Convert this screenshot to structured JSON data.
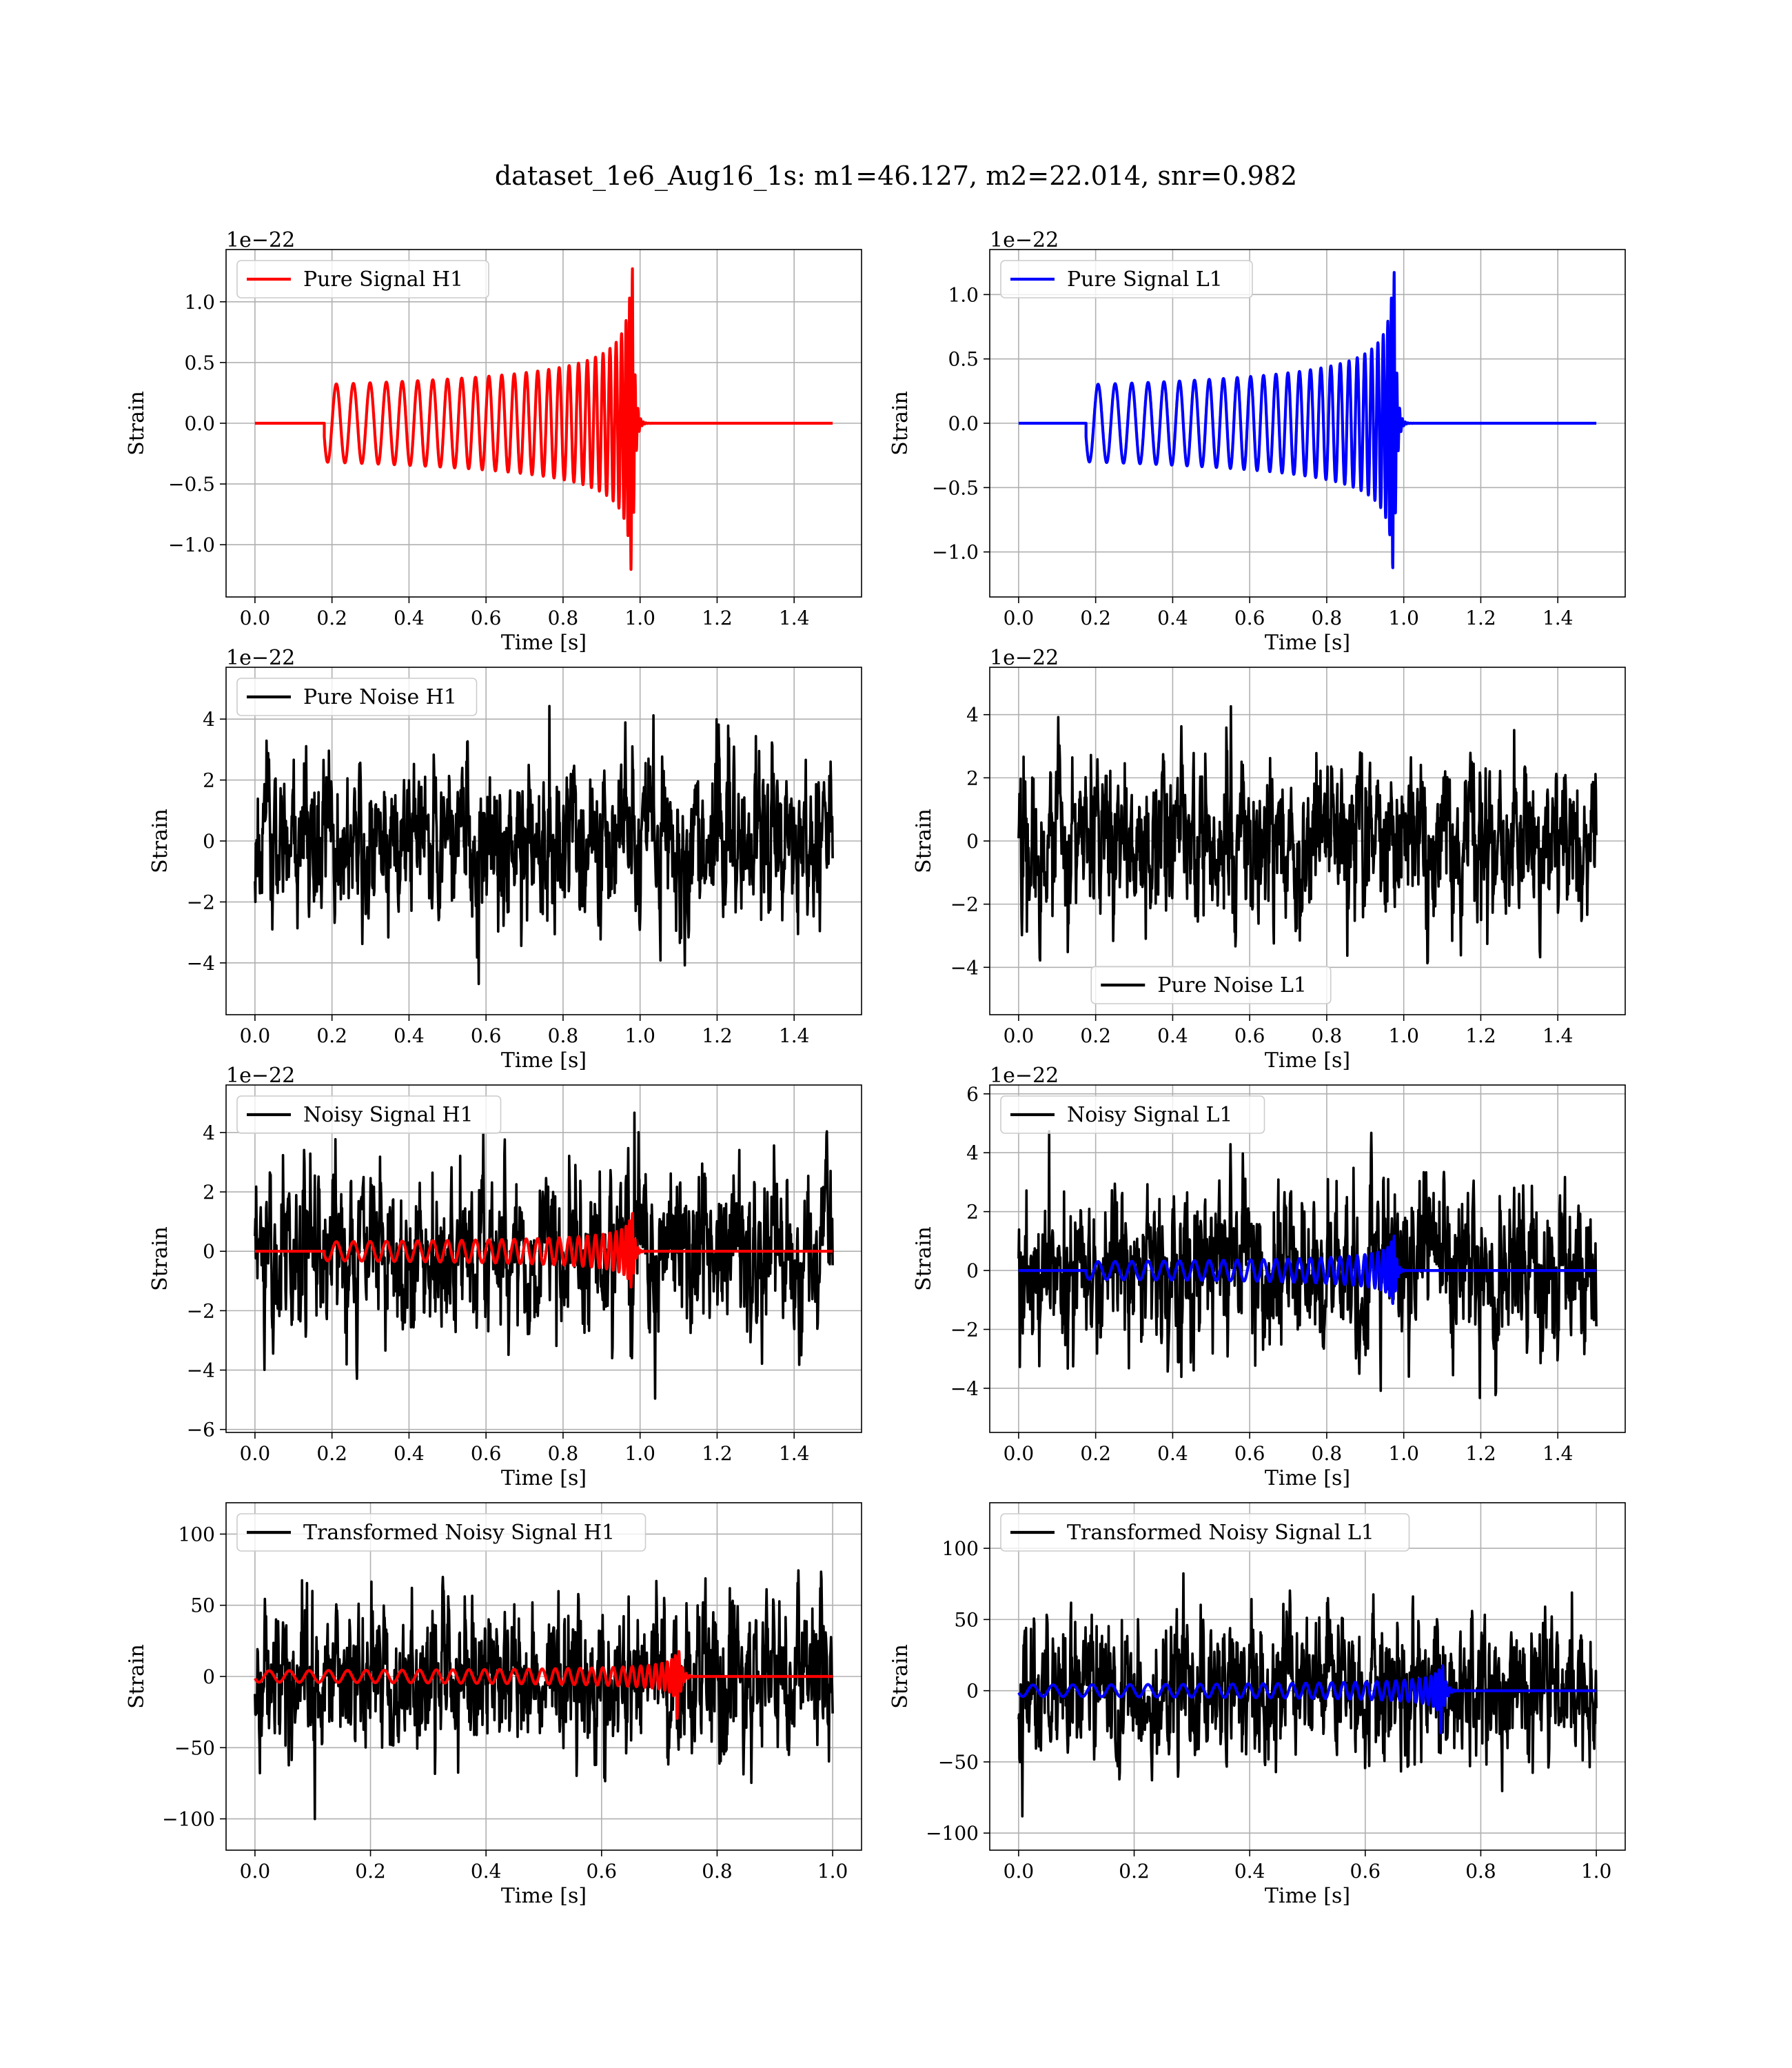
{
  "figure": {
    "title": "dataset_1e6_Aug16_1s: m1=46.127, m2=22.014, snr=0.982"
  },
  "colors": {
    "h1": "#ff0000",
    "l1": "#0000ff",
    "noise": "#000000"
  },
  "chart_data": [
    {
      "id": "pure-signal-h1",
      "type": "line",
      "row": 0,
      "col": 0,
      "xlabel": "Time [s]",
      "ylabel": "Strain",
      "offset_text": "1e−22",
      "xlim": [
        -0.075,
        1.575
      ],
      "ylim": [
        -1.43,
        1.43
      ],
      "xticks": [
        0.0,
        0.2,
        0.4,
        0.6,
        0.8,
        1.0,
        1.2,
        1.4
      ],
      "xtick_labels": [
        "0.0",
        "0.2",
        "0.4",
        "0.6",
        "0.8",
        "1.0",
        "1.2",
        "1.4"
      ],
      "yticks": [
        -1.0,
        -0.5,
        0.0,
        0.5,
        1.0
      ],
      "ytick_labels": [
        "−1.0",
        "−0.5",
        "0.0",
        "0.5",
        "1.0"
      ],
      "legend": {
        "position": "upper-left",
        "entries": [
          {
            "label": "Pure Signal H1",
            "color": "#ff0000"
          }
        ]
      },
      "grid": true,
      "series": [
        {
          "name": "Pure Signal H1",
          "color": "#ff0000",
          "kind": "chirp",
          "t_start": 0.18,
          "t_merge": 0.98,
          "t_end": 1.5,
          "amp_start": 0.32,
          "amp_peak": 1.3,
          "f_start": 22,
          "f_merge": 140,
          "seed": 11
        }
      ]
    },
    {
      "id": "pure-signal-l1",
      "type": "line",
      "row": 0,
      "col": 1,
      "xlabel": "Time [s]",
      "ylabel": "Strain",
      "offset_text": "1e−22",
      "xlim": [
        -0.075,
        1.575
      ],
      "ylim": [
        -1.35,
        1.35
      ],
      "xticks": [
        0.0,
        0.2,
        0.4,
        0.6,
        0.8,
        1.0,
        1.2,
        1.4
      ],
      "xtick_labels": [
        "0.0",
        "0.2",
        "0.4",
        "0.6",
        "0.8",
        "1.0",
        "1.2",
        "1.4"
      ],
      "yticks": [
        -1.0,
        -0.5,
        0.0,
        0.5,
        1.0
      ],
      "ytick_labels": [
        "−1.0",
        "−0.5",
        "0.0",
        "0.5",
        "1.0"
      ],
      "legend": {
        "position": "upper-left",
        "entries": [
          {
            "label": "Pure Signal L1",
            "color": "#0000ff"
          }
        ]
      },
      "grid": true,
      "series": [
        {
          "name": "Pure Signal L1",
          "color": "#0000ff",
          "kind": "chirp",
          "t_start": 0.175,
          "t_merge": 0.975,
          "t_end": 1.5,
          "amp_start": 0.3,
          "amp_peak": 1.25,
          "f_start": 22,
          "f_merge": 140,
          "seed": 12
        }
      ]
    },
    {
      "id": "pure-noise-h1",
      "type": "line",
      "row": 1,
      "col": 0,
      "xlabel": "Time [s]",
      "ylabel": "Strain",
      "offset_text": "1e−22",
      "xlim": [
        -0.075,
        1.575
      ],
      "ylim": [
        -5.7,
        5.7
      ],
      "xticks": [
        0.0,
        0.2,
        0.4,
        0.6,
        0.8,
        1.0,
        1.2,
        1.4
      ],
      "xtick_labels": [
        "0.0",
        "0.2",
        "0.4",
        "0.6",
        "0.8",
        "1.0",
        "1.2",
        "1.4"
      ],
      "yticks": [
        -4,
        -2,
        0,
        2,
        4
      ],
      "ytick_labels": [
        "−4",
        "−2",
        "0",
        "2",
        "4"
      ],
      "legend": {
        "position": "upper-left",
        "entries": [
          {
            "label": "Pure Noise H1",
            "color": "#000000"
          }
        ]
      },
      "grid": true,
      "series": [
        {
          "name": "Pure Noise H1",
          "color": "#000000",
          "kind": "noise",
          "t_start": 0.0,
          "t_end": 1.5,
          "sigma": 1.55,
          "max_abs": 5.2,
          "seed": 21
        }
      ]
    },
    {
      "id": "pure-noise-l1",
      "type": "line",
      "row": 1,
      "col": 1,
      "xlabel": "Time [s]",
      "ylabel": "Strain",
      "offset_text": "1e−22",
      "xlim": [
        -0.075,
        1.575
      ],
      "ylim": [
        -5.5,
        5.5
      ],
      "xticks": [
        0.0,
        0.2,
        0.4,
        0.6,
        0.8,
        1.0,
        1.2,
        1.4
      ],
      "xtick_labels": [
        "0.0",
        "0.2",
        "0.4",
        "0.6",
        "0.8",
        "1.0",
        "1.2",
        "1.4"
      ],
      "yticks": [
        -4,
        -2,
        0,
        2,
        4
      ],
      "ytick_labels": [
        "−4",
        "−2",
        "0",
        "2",
        "4"
      ],
      "legend": {
        "position": "lower-center",
        "entries": [
          {
            "label": "Pure Noise L1",
            "color": "#000000"
          }
        ]
      },
      "grid": true,
      "series": [
        {
          "name": "Pure Noise L1",
          "color": "#000000",
          "kind": "noise",
          "t_start": 0.0,
          "t_end": 1.5,
          "sigma": 1.5,
          "max_abs": 5.0,
          "seed": 22
        }
      ]
    },
    {
      "id": "noisy-signal-h1",
      "type": "line",
      "row": 2,
      "col": 0,
      "xlabel": "Time [s]",
      "ylabel": "Strain",
      "offset_text": "1e−22",
      "xlim": [
        -0.075,
        1.575
      ],
      "ylim": [
        -6.1,
        5.6
      ],
      "xticks": [
        0.0,
        0.2,
        0.4,
        0.6,
        0.8,
        1.0,
        1.2,
        1.4
      ],
      "xtick_labels": [
        "0.0",
        "0.2",
        "0.4",
        "0.6",
        "0.8",
        "1.0",
        "1.2",
        "1.4"
      ],
      "yticks": [
        -6,
        -4,
        -2,
        0,
        2,
        4
      ],
      "ytick_labels": [
        "−6",
        "−4",
        "−2",
        "0",
        "2",
        "4"
      ],
      "legend": {
        "position": "upper-left",
        "entries": [
          {
            "label": "Noisy Signal H1",
            "color": "#000000"
          }
        ]
      },
      "grid": true,
      "series": [
        {
          "name": "Noisy Signal H1",
          "color": "#000000",
          "kind": "noise",
          "t_start": 0.0,
          "t_end": 1.5,
          "sigma": 1.6,
          "max_abs": 5.6,
          "seed": 31
        },
        {
          "color": "#ff0000",
          "kind": "chirp",
          "t_start": 0.18,
          "t_merge": 0.98,
          "t_end": 1.5,
          "amp_start": 0.32,
          "amp_peak": 1.3,
          "f_start": 22,
          "f_merge": 140,
          "seed": 11
        }
      ]
    },
    {
      "id": "noisy-signal-l1",
      "type": "line",
      "row": 2,
      "col": 1,
      "xlabel": "Time [s]",
      "ylabel": "Strain",
      "offset_text": "1e−22",
      "xlim": [
        -0.075,
        1.575
      ],
      "ylim": [
        -5.5,
        6.3
      ],
      "xticks": [
        0.0,
        0.2,
        0.4,
        0.6,
        0.8,
        1.0,
        1.2,
        1.4
      ],
      "xtick_labels": [
        "0.0",
        "0.2",
        "0.4",
        "0.6",
        "0.8",
        "1.0",
        "1.2",
        "1.4"
      ],
      "yticks": [
        -4,
        -2,
        0,
        2,
        4,
        6
      ],
      "ytick_labels": [
        "−4",
        "−2",
        "0",
        "2",
        "4",
        "6"
      ],
      "legend": {
        "position": "upper-left",
        "entries": [
          {
            "label": "Noisy Signal L1",
            "color": "#000000"
          }
        ]
      },
      "grid": true,
      "series": [
        {
          "name": "Noisy Signal L1",
          "color": "#000000",
          "kind": "noise",
          "t_start": 0.0,
          "t_end": 1.5,
          "sigma": 1.55,
          "max_abs": 5.7,
          "seed": 32
        },
        {
          "color": "#0000ff",
          "kind": "chirp",
          "t_start": 0.175,
          "t_merge": 0.975,
          "t_end": 1.5,
          "amp_start": 0.3,
          "amp_peak": 1.25,
          "f_start": 22,
          "f_merge": 140,
          "seed": 12
        }
      ]
    },
    {
      "id": "transformed-noisy-signal-h1",
      "type": "line",
      "row": 3,
      "col": 0,
      "xlabel": "Time [s]",
      "ylabel": "Strain",
      "offset_text": "",
      "xlim": [
        -0.05,
        1.05
      ],
      "ylim": [
        -122,
        122
      ],
      "xticks": [
        0.0,
        0.2,
        0.4,
        0.6,
        0.8,
        1.0
      ],
      "xtick_labels": [
        "0.0",
        "0.2",
        "0.4",
        "0.6",
        "0.8",
        "1.0"
      ],
      "yticks": [
        -100,
        -50,
        0,
        50,
        100
      ],
      "ytick_labels": [
        "−100",
        "−50",
        "0",
        "50",
        "100"
      ],
      "legend": {
        "position": "upper-left",
        "entries": [
          {
            "label": "Transformed Noisy Signal H1",
            "color": "#000000"
          }
        ]
      },
      "grid": true,
      "series": [
        {
          "name": "Transformed Noisy Signal H1",
          "color": "#000000",
          "kind": "noise",
          "t_start": 0.0,
          "t_end": 1.0,
          "sigma": 31,
          "max_abs": 110,
          "seed": 41
        },
        {
          "color": "#ff0000",
          "kind": "chirp",
          "t_start": 0.0,
          "t_merge": 0.73,
          "t_end": 1.0,
          "amp_start": 4,
          "amp_peak": 34,
          "f_start": 28,
          "f_merge": 160,
          "seed": 13
        }
      ]
    },
    {
      "id": "transformed-noisy-signal-l1",
      "type": "line",
      "row": 3,
      "col": 1,
      "xlabel": "Time [s]",
      "ylabel": "Strain",
      "offset_text": "",
      "xlim": [
        -0.05,
        1.05
      ],
      "ylim": [
        -112,
        132
      ],
      "xticks": [
        0.0,
        0.2,
        0.4,
        0.6,
        0.8,
        1.0
      ],
      "xtick_labels": [
        "0.0",
        "0.2",
        "0.4",
        "0.6",
        "0.8",
        "1.0"
      ],
      "yticks": [
        -100,
        -50,
        0,
        50,
        100
      ],
      "ytick_labels": [
        "−100",
        "−50",
        "0",
        "50",
        "100"
      ],
      "legend": {
        "position": "upper-left",
        "entries": [
          {
            "label": "Transformed Noisy Signal L1",
            "color": "#000000"
          }
        ]
      },
      "grid": true,
      "series": [
        {
          "name": "Transformed Noisy Signal L1",
          "color": "#000000",
          "kind": "noise",
          "t_start": 0.0,
          "t_end": 1.0,
          "sigma": 30,
          "max_abs": 122,
          "seed": 42
        },
        {
          "color": "#0000ff",
          "kind": "chirp",
          "t_start": 0.0,
          "t_merge": 0.73,
          "t_end": 1.0,
          "amp_start": 4,
          "amp_peak": 34,
          "f_start": 28,
          "f_merge": 160,
          "seed": 14
        }
      ]
    }
  ]
}
